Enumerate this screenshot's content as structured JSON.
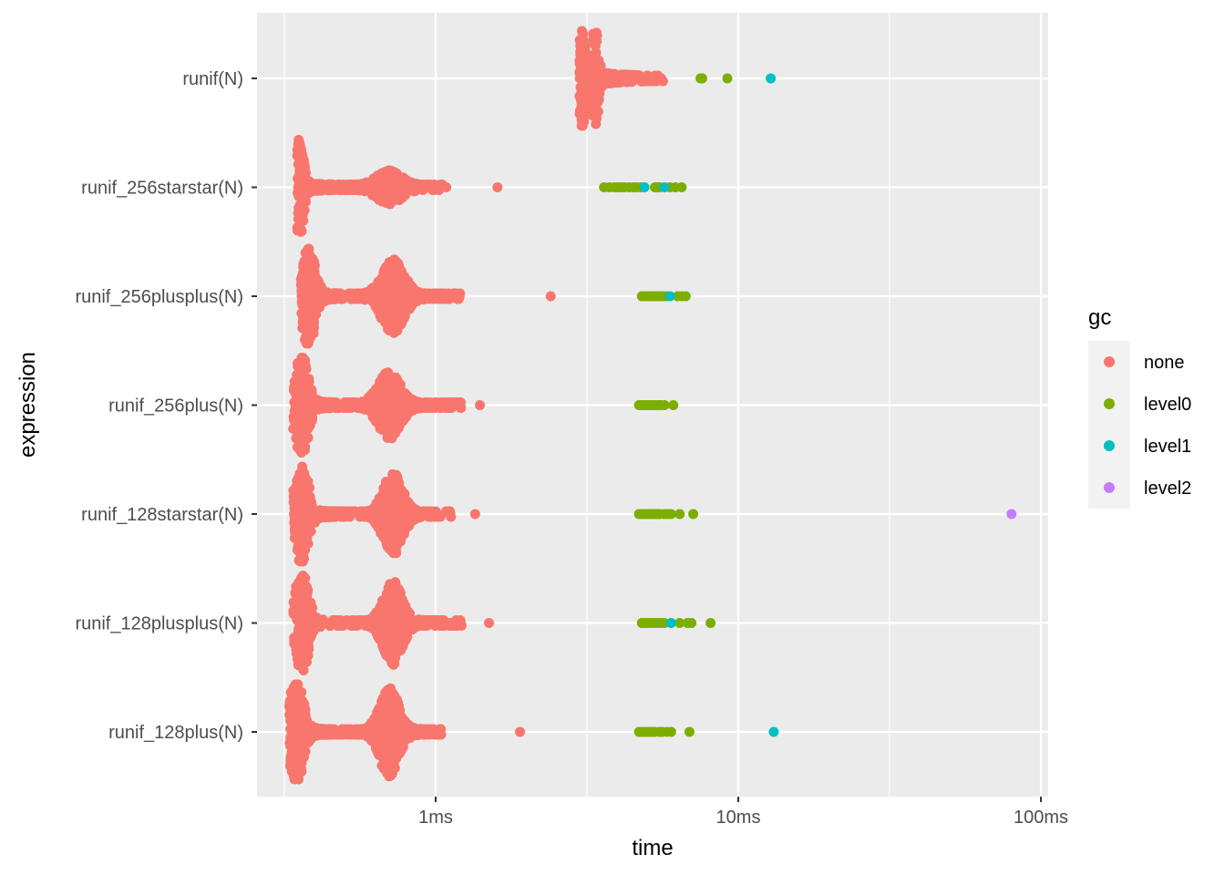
{
  "chart_data": {
    "type": "scatter",
    "subtype": "beeswarm",
    "xlabel": "time",
    "ylabel": "expression",
    "x_scale": "log10",
    "x_unit": "ms",
    "xlim": [
      0.3,
      120
    ],
    "x_ticks": [
      {
        "value": 1,
        "label": "1ms"
      },
      {
        "value": 10,
        "label": "10ms"
      },
      {
        "value": 100,
        "label": "100ms"
      }
    ],
    "x_minor_gridlines": [
      0.316,
      3.16,
      31.6
    ],
    "grid": true,
    "background": "#ebebeb",
    "categories": [
      "runif(N)",
      "runif_256starstar(N)",
      "runif_256plusplus(N)",
      "runif_256plus(N)",
      "runif_128starstar(N)",
      "runif_128plusplus(N)",
      "runif_128plus(N)"
    ],
    "legend": {
      "title": "gc",
      "position": "right",
      "entries": [
        {
          "name": "none",
          "color": "#F8766D"
        },
        {
          "name": "level0",
          "color": "#7CAE00"
        },
        {
          "name": "level1",
          "color": "#00BFC4"
        },
        {
          "name": "level2",
          "color": "#C77CFF"
        }
      ]
    },
    "series": [
      {
        "expression": "runif(N)",
        "none": {
          "modes": [
            {
              "t": 3.05,
              "h": 1.0,
              "w": 0.01
            },
            {
              "t": 3.35,
              "h": 1.0,
              "w": 0.01
            }
          ],
          "range": [
            3.0,
            5.7
          ],
          "outliers": [
            5.0,
            5.2
          ]
        },
        "level0": [
          7.5,
          7.6,
          9.2
        ],
        "level1": [
          12.8
        ],
        "level2": []
      },
      {
        "expression": "runif_256starstar(N)",
        "none": {
          "modes": [
            {
              "t": 0.355,
              "h": 1.0,
              "w": 0.012
            },
            {
              "t": 0.7,
              "h": 0.3,
              "w": 0.04
            }
          ],
          "range": [
            0.35,
            1.1
          ],
          "outliers": [
            1.6
          ]
        },
        "level0": [
          3.6,
          3.75,
          3.9,
          4.0,
          4.1,
          4.2,
          4.35,
          4.5,
          4.6,
          4.75,
          5.3,
          5.4,
          5.5,
          5.95,
          6.2,
          6.5
        ],
        "level1": [
          4.9,
          5.7
        ],
        "level2": []
      },
      {
        "expression": "runif_256plusplus(N)",
        "none": {
          "modes": [
            {
              "t": 0.38,
              "h": 1.0,
              "w": 0.02
            },
            {
              "t": 0.72,
              "h": 0.7,
              "w": 0.035
            }
          ],
          "range": [
            0.36,
            1.2
          ],
          "outliers": [
            2.4
          ]
        },
        "level0": [
          4.8,
          4.9,
          5.0,
          5.1,
          5.2,
          5.25,
          5.3,
          5.4,
          5.5,
          5.55,
          5.65,
          5.8,
          6.3,
          6.5,
          6.7
        ],
        "level1": [
          5.95
        ],
        "level2": []
      },
      {
        "expression": "runif_256plus(N)",
        "none": {
          "modes": [
            {
              "t": 0.36,
              "h": 1.0,
              "w": 0.02
            },
            {
              "t": 0.7,
              "h": 0.65,
              "w": 0.035
            }
          ],
          "range": [
            0.34,
            1.22
          ],
          "outliers": [
            1.4
          ]
        },
        "level0": [
          4.7,
          4.8,
          4.85,
          4.9,
          5.0,
          5.05,
          5.1,
          5.2,
          5.3,
          5.4,
          5.5,
          5.55,
          5.7,
          6.1
        ],
        "level1": [],
        "level2": []
      },
      {
        "expression": "runif_128starstar(N)",
        "none": {
          "modes": [
            {
              "t": 0.36,
              "h": 1.0,
              "w": 0.02
            },
            {
              "t": 0.72,
              "h": 0.8,
              "w": 0.03
            }
          ],
          "range": [
            0.34,
            1.13
          ],
          "outliers": [
            1.35
          ]
        },
        "level0": [
          4.7,
          4.8,
          4.9,
          5.0,
          5.1,
          5.2,
          5.3,
          5.4,
          5.5,
          5.7,
          5.85,
          6.0,
          6.4,
          7.1
        ],
        "level1": [],
        "level2": [
          80
        ]
      },
      {
        "expression": "runif_128plusplus(N)",
        "none": {
          "modes": [
            {
              "t": 0.36,
              "h": 1.0,
              "w": 0.02
            },
            {
              "t": 0.72,
              "h": 0.8,
              "w": 0.03
            }
          ],
          "range": [
            0.34,
            1.22
          ],
          "outliers": [
            1.5
          ]
        },
        "level0": [
          4.8,
          4.9,
          5.0,
          5.1,
          5.2,
          5.3,
          5.4,
          5.5,
          5.6,
          5.7,
          6.4,
          6.8,
          7.0,
          8.1
        ],
        "level1": [
          6.0
        ],
        "level2": []
      },
      {
        "expression": "runif_128plus(N)",
        "none": {
          "modes": [
            {
              "t": 0.345,
              "h": 1.0,
              "w": 0.022
            },
            {
              "t": 0.7,
              "h": 0.85,
              "w": 0.03
            }
          ],
          "range": [
            0.33,
            1.05
          ],
          "outliers": [
            1.9
          ]
        },
        "level0": [
          4.7,
          4.8,
          4.9,
          5.0,
          5.1,
          5.2,
          5.3,
          5.5,
          5.6,
          5.8,
          6.0,
          6.9
        ],
        "level1": [
          13.1
        ],
        "level2": []
      }
    ]
  }
}
